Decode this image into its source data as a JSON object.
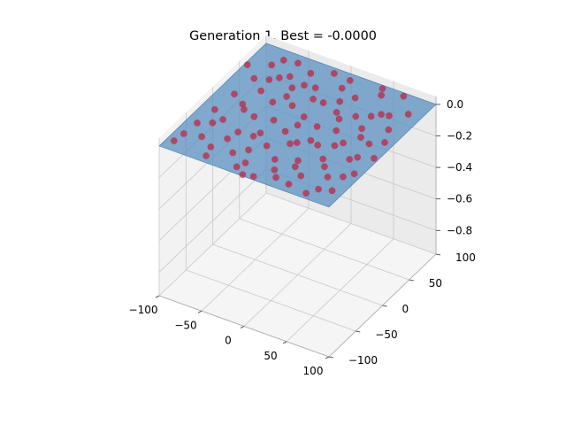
{
  "chart_data": {
    "type": "scatter",
    "title": "Generation 1, Best = -0.0000",
    "xlabel": "",
    "ylabel": "",
    "zlabel": "",
    "xlim": [
      -100,
      100
    ],
    "ylim": [
      -100,
      100
    ],
    "zlim": [
      -0.95,
      0.05
    ],
    "x_ticks": [
      -100,
      -50,
      0,
      50,
      100
    ],
    "y_ticks": [
      -100,
      -50,
      0,
      50,
      100
    ],
    "z_ticks": [
      0.0,
      -0.2,
      -0.4,
      -0.6,
      -0.8
    ],
    "x_tick_labels": [
      "−100",
      "−50",
      "0",
      "50",
      "100"
    ],
    "y_tick_labels": [
      "−100",
      "−50",
      "0",
      "50",
      "100"
    ],
    "z_tick_labels": [
      "0.0",
      "−0.2",
      "−0.4",
      "−0.6",
      "−0.8"
    ],
    "grid": true,
    "surface": {
      "z": -0.0,
      "color": "#5b8fc0",
      "opacity": 0.75,
      "description": "flat fitness surface at z = 0"
    },
    "marker_color": "#c0203a",
    "series": [
      {
        "points": [
          [
            -92,
            -85
          ],
          [
            -88,
            -48
          ],
          [
            -85,
            -20
          ],
          [
            -82,
            12
          ],
          [
            -79,
            44
          ],
          [
            -76,
            72
          ],
          [
            -72,
            -65
          ],
          [
            -69,
            -30
          ],
          [
            -66,
            2
          ],
          [
            -62,
            30
          ],
          [
            -58,
            58
          ],
          [
            -55,
            88
          ],
          [
            -51,
            -90
          ],
          [
            -48,
            -55
          ],
          [
            -45,
            -10
          ],
          [
            -42,
            20
          ],
          [
            -38,
            50
          ],
          [
            -35,
            80
          ],
          [
            -31,
            -72
          ],
          [
            -28,
            -38
          ],
          [
            -25,
            -5
          ],
          [
            -22,
            25
          ],
          [
            -18,
            62
          ],
          [
            -15,
            92
          ],
          [
            -11,
            -80
          ],
          [
            -8,
            -45
          ],
          [
            -5,
            -15
          ],
          [
            -2,
            15
          ],
          [
            2,
            45
          ],
          [
            5,
            75
          ],
          [
            8,
            -95
          ],
          [
            11,
            -60
          ],
          [
            15,
            -25
          ],
          [
            18,
            8
          ],
          [
            22,
            38
          ],
          [
            25,
            68
          ],
          [
            28,
            -85
          ],
          [
            32,
            -50
          ],
          [
            35,
            -18
          ],
          [
            38,
            12
          ],
          [
            42,
            42
          ],
          [
            45,
            85
          ],
          [
            48,
            -70
          ],
          [
            52,
            -35
          ],
          [
            55,
            -2
          ],
          [
            58,
            28
          ],
          [
            62,
            58
          ],
          [
            65,
            95
          ],
          [
            68,
            -92
          ],
          [
            72,
            -58
          ],
          [
            75,
            -22
          ],
          [
            78,
            10
          ],
          [
            82,
            40
          ],
          [
            85,
            72
          ],
          [
            88,
            -75
          ],
          [
            92,
            -40
          ],
          [
            95,
            -8
          ],
          [
            -97,
            60
          ],
          [
            -3,
            -98
          ],
          [
            60,
            -45
          ],
          [
            -60,
            -5
          ],
          [
            40,
            95
          ],
          [
            10,
            -30
          ],
          [
            -30,
            60
          ],
          [
            30,
            30
          ],
          [
            -45,
            -40
          ],
          [
            50,
            -10
          ],
          [
            -20,
            -60
          ],
          [
            20,
            -75
          ],
          [
            70,
            60
          ],
          [
            -70,
            85
          ],
          [
            0,
            0
          ],
          [
            -35,
            35
          ],
          [
            80,
            -15
          ],
          [
            -90,
            -70
          ],
          [
            90,
            20
          ],
          [
            15,
            55
          ],
          [
            -55,
            -75
          ],
          [
            45,
            -88
          ],
          [
            -10,
            45
          ],
          [
            35,
            -60
          ],
          [
            65,
            15
          ],
          [
            -25,
            -30
          ],
          [
            5,
            90
          ],
          [
            -75,
            -40
          ],
          [
            75,
            -80
          ],
          [
            -50,
            65
          ],
          [
            55,
            50
          ],
          [
            -15,
            -90
          ],
          [
            25,
            -15
          ],
          [
            -65,
            50
          ],
          [
            85,
            -50
          ]
        ]
      }
    ]
  }
}
